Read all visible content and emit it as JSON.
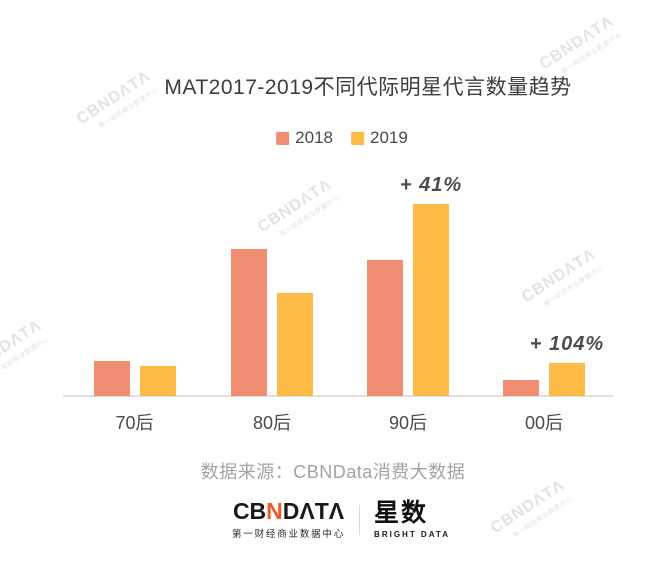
{
  "title": "MAT2017-2019不同代际明星代言数量趋势",
  "watermark": {
    "brand": "CBNDΛTΛ",
    "subtext": "第一财经商业数据中心",
    "color": "#e3e3e3"
  },
  "chart_data": {
    "type": "bar",
    "title": "MAT2017-2019不同代际明星代言数量趋势",
    "categories": [
      "70后",
      "80后",
      "90后",
      "00后"
    ],
    "series": [
      {
        "name": "2018",
        "color": "#F08E74",
        "values": [
          35,
          147,
          136,
          16
        ]
      },
      {
        "name": "2019",
        "color": "#FCBA47",
        "values": [
          30,
          103,
          192,
          33
        ]
      }
    ],
    "annotations": [
      {
        "category": "90后",
        "series": "2019",
        "text": "+ 41%"
      },
      {
        "category": "00后",
        "series": "2019",
        "text": "+ 104%"
      }
    ],
    "xlabel": "",
    "ylabel": "",
    "ylim": [
      0,
      210
    ],
    "grid": false,
    "legend_position": "top-center",
    "value_note": "no y-axis shown; values are relative heights, 2019 vs 2018 growth labeled +41% (90后) and +104% (00后)"
  },
  "source_note": "数据来源：CBNData消费大数据",
  "footer": {
    "cbndata_logo": {
      "prefix": "CB",
      "accent": "N",
      "suffix": "DΛTΛ",
      "accent_color": "#F1582C",
      "subtext": "第一财经商业数据中心"
    },
    "bright_data_logo": {
      "name": "星数",
      "subtext": "BRIGHT DATA"
    }
  }
}
